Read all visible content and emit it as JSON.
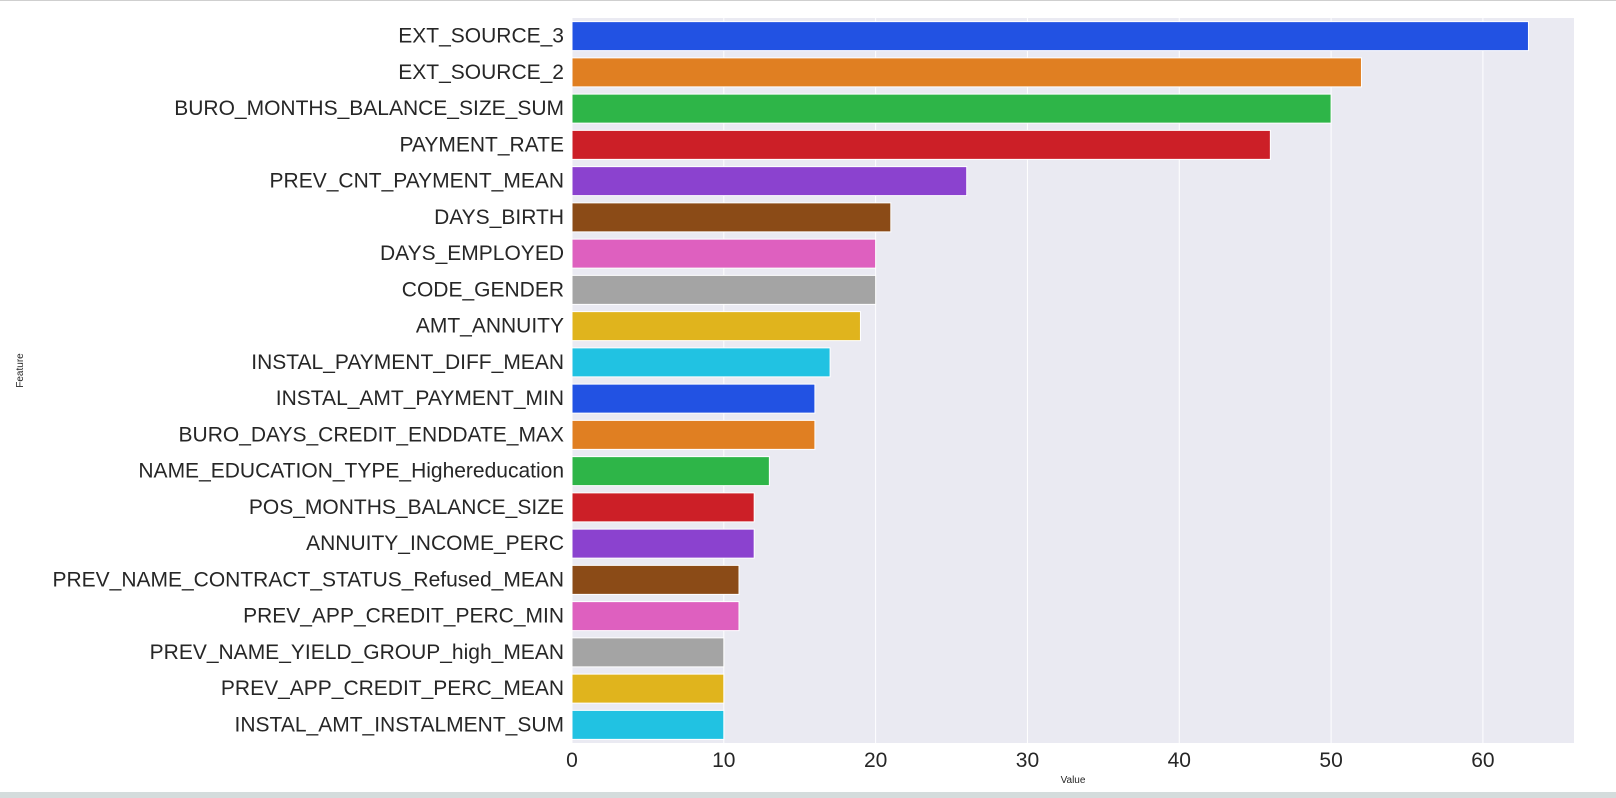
{
  "chart_data": {
    "type": "bar",
    "orientation": "horizontal",
    "xlabel": "Value",
    "ylabel": "Feature",
    "xlim": [
      0,
      66
    ],
    "xticks": [
      0,
      10,
      20,
      30,
      40,
      50,
      60
    ],
    "grid": true,
    "background": "#eaeaf2",
    "categories": [
      "EXT_SOURCE_3",
      "EXT_SOURCE_2",
      "BURO_MONTHS_BALANCE_SIZE_SUM",
      "PAYMENT_RATE",
      "PREV_CNT_PAYMENT_MEAN",
      "DAYS_BIRTH",
      "DAYS_EMPLOYED",
      "CODE_GENDER",
      "AMT_ANNUITY",
      "INSTAL_PAYMENT_DIFF_MEAN",
      "INSTAL_AMT_PAYMENT_MIN",
      "BURO_DAYS_CREDIT_ENDDATE_MAX",
      "NAME_EDUCATION_TYPE_Highereducation",
      "POS_MONTHS_BALANCE_SIZE",
      "ANNUITY_INCOME_PERC",
      "PREV_NAME_CONTRACT_STATUS_Refused_MEAN",
      "PREV_APP_CREDIT_PERC_MIN",
      "PREV_NAME_YIELD_GROUP_high_MEAN",
      "PREV_APP_CREDIT_PERC_MEAN",
      "INSTAL_AMT_INSTALMENT_SUM"
    ],
    "values": [
      63,
      52,
      50,
      46,
      26,
      21,
      20,
      20,
      19,
      17,
      16,
      16,
      13,
      12,
      12,
      11,
      11,
      10,
      10,
      10
    ],
    "colors": [
      "#2252e3",
      "#e07f22",
      "#2eb548",
      "#cc1f27",
      "#8b42cf",
      "#8b4b17",
      "#de60bf",
      "#a4a4a4",
      "#e0b41d",
      "#21c2e2"
    ]
  }
}
